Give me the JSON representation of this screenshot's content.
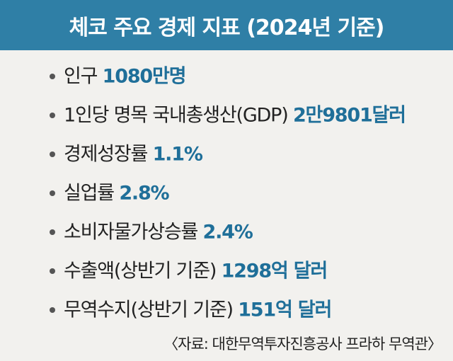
{
  "header": {
    "title": "체코 주요 경제 지표 (2024년 기준)"
  },
  "colors": {
    "header_bg": "#2f7fa6",
    "panel_bg": "#f2f1ee",
    "value_color": "#1f6f99"
  },
  "indicators": [
    {
      "label": "인구",
      "value": "1080만명"
    },
    {
      "label": "1인당 명목 국내총생산(GDP)",
      "value": "2만9801달러"
    },
    {
      "label": "경제성장률",
      "value": "1.1%"
    },
    {
      "label": "실업률",
      "value": "2.8%"
    },
    {
      "label": "소비자물가상승률",
      "value": "2.4%"
    },
    {
      "label": "수출액(상반기 기준)",
      "value": "1298억 달러"
    },
    {
      "label": "무역수지(상반기 기준)",
      "value": "151억 달러"
    }
  ],
  "source": "〈자료: 대한무역투자진흥공사 프라하 무역관〉"
}
